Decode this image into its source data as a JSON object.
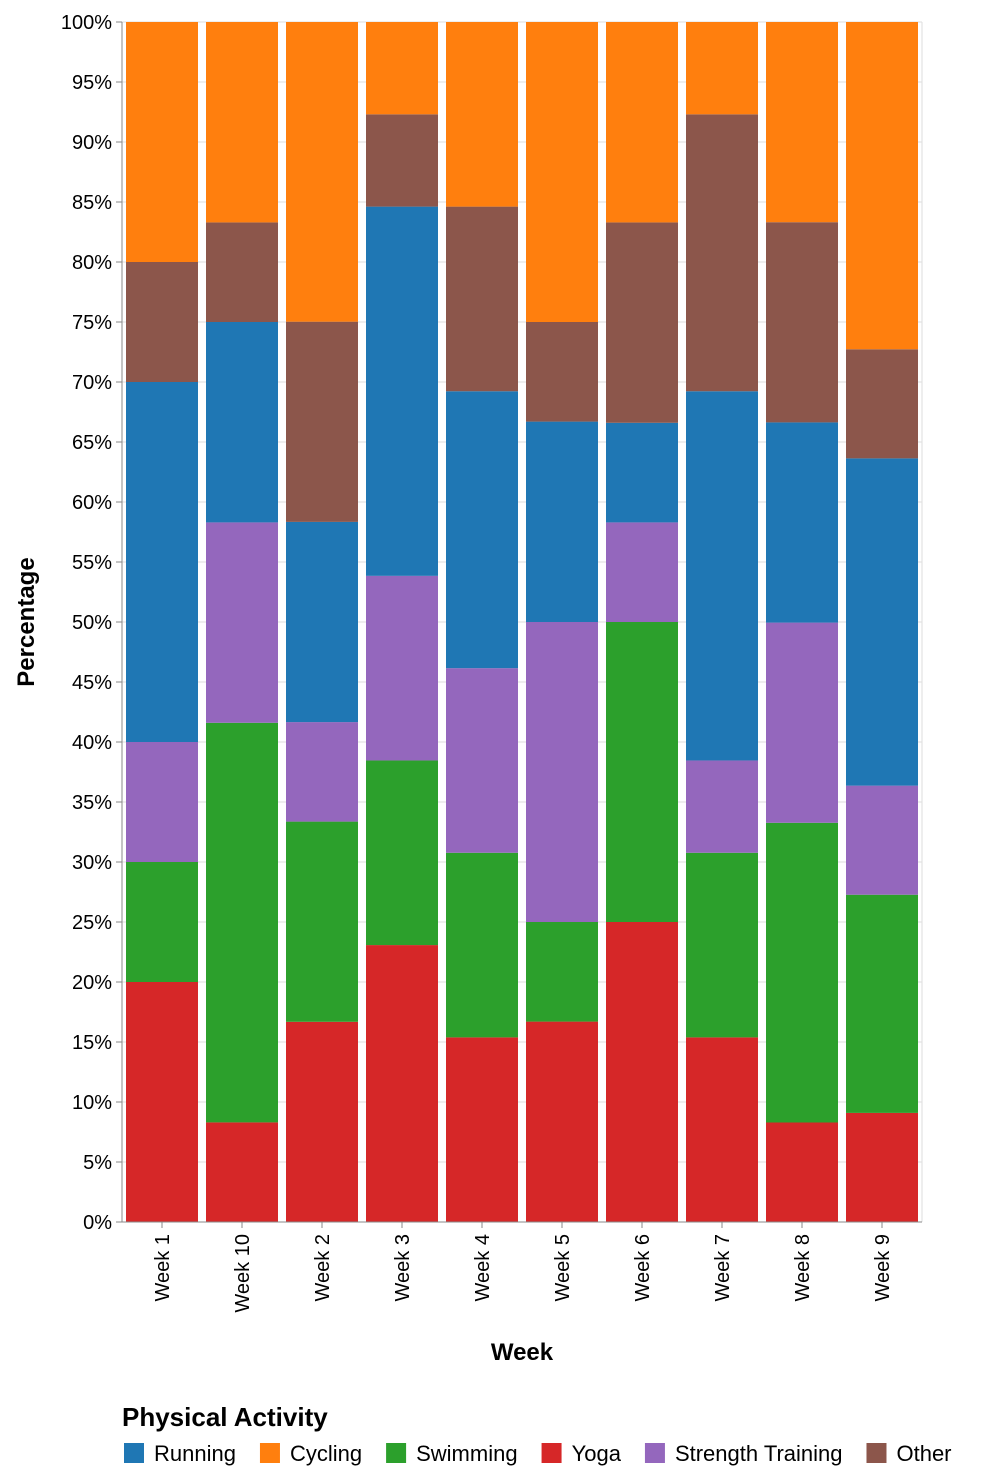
{
  "chart_data": {
    "type": "bar",
    "stacked": "normalized",
    "xlabel": "Week",
    "ylabel": "Percentage",
    "ylim": [
      0,
      100
    ],
    "y_ticks": [
      "0%",
      "5%",
      "10%",
      "15%",
      "20%",
      "25%",
      "30%",
      "35%",
      "40%",
      "45%",
      "50%",
      "55%",
      "60%",
      "65%",
      "70%",
      "75%",
      "80%",
      "85%",
      "90%",
      "95%",
      "100%"
    ],
    "grid": true,
    "legend_title": "Physical Activity",
    "legend_position": "bottom",
    "categories": [
      "Week 1",
      "Week 10",
      "Week 2",
      "Week 3",
      "Week 4",
      "Week 5",
      "Week 6",
      "Week 7",
      "Week 8",
      "Week 9"
    ],
    "stack_order": [
      "Yoga",
      "Swimming",
      "Strength Training",
      "Running",
      "Other",
      "Cycling"
    ],
    "series": [
      {
        "name": "Running",
        "color": "#1f77b4",
        "values": [
          30,
          16.7,
          16.7,
          30.8,
          23.1,
          16.7,
          8.3,
          30.8,
          16.7,
          27.3
        ]
      },
      {
        "name": "Cycling",
        "color": "#ff7f0e",
        "values": [
          20,
          16.7,
          25,
          7.7,
          15.4,
          25,
          16.7,
          7.7,
          16.7,
          27.3
        ]
      },
      {
        "name": "Swimming",
        "color": "#2ca02c",
        "values": [
          10,
          33.3,
          16.7,
          15.4,
          15.4,
          8.3,
          25,
          15.4,
          25,
          18.2
        ]
      },
      {
        "name": "Yoga",
        "color": "#d62728",
        "values": [
          20,
          8.3,
          16.7,
          23.1,
          15.4,
          16.7,
          25,
          15.4,
          8.3,
          9.1
        ]
      },
      {
        "name": "Strength Training",
        "color": "#9467bd",
        "values": [
          10,
          16.7,
          8.3,
          15.4,
          15.4,
          25,
          8.3,
          7.7,
          16.7,
          9.1
        ]
      },
      {
        "name": "Other",
        "color": "#8c564b",
        "values": [
          10,
          8.3,
          16.7,
          7.7,
          15.4,
          8.3,
          16.7,
          23.1,
          16.7,
          9.1
        ]
      }
    ]
  }
}
